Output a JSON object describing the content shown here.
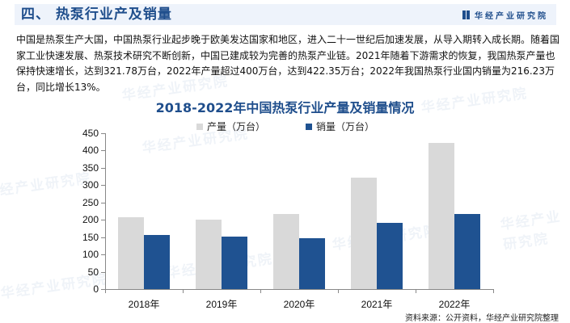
{
  "header": {
    "title": "四、 热泵行业产及销量",
    "brand": "华经产业研究院",
    "brand_icon": "book-logo-icon"
  },
  "paragraph": "中国是热泵生产大国，中国热泵行业起步晚于欧美发达国家和地区，进入二十一世纪后加速发展，从导入期转入成长期。随着国家工业快速发展、热泵技术研究不断创新，中国已建成较为完善的热泵产业链。2021年随着下游需求的恢复，我国热泵产量也保持快速增长，达到321.78万台，2022年产量超过400万台，达到422.35万台；2022年我国热泵行业国内销量为216.23万台，同比增长13%。",
  "colors": {
    "production": "#d9d9d9",
    "sales": "#1f5291",
    "title": "#1f4e8c"
  },
  "chart_data": {
    "type": "bar",
    "title": "2018-2022年中国热泵行业产量及销量情况",
    "xlabel": "",
    "ylabel": "",
    "categories": [
      "2018年",
      "2019年",
      "2020年",
      "2021年",
      "2022年"
    ],
    "series": [
      {
        "name": "产量（万台）",
        "values": [
          207,
          200,
          216,
          321.78,
          422.35
        ]
      },
      {
        "name": "销量（万台）",
        "values": [
          156,
          151,
          148,
          191,
          216.23
        ]
      }
    ],
    "ylim": [
      0,
      450
    ],
    "yticks": [
      0,
      50,
      100,
      150,
      200,
      250,
      300,
      350,
      400,
      450
    ],
    "grid": false,
    "legend_position": "top"
  },
  "legend": {
    "production": "产量（万台）",
    "sales": "销量（万台）"
  },
  "source": "资料来源：公开资料，华经产业研究院整理",
  "watermark": "华经产业研究院"
}
